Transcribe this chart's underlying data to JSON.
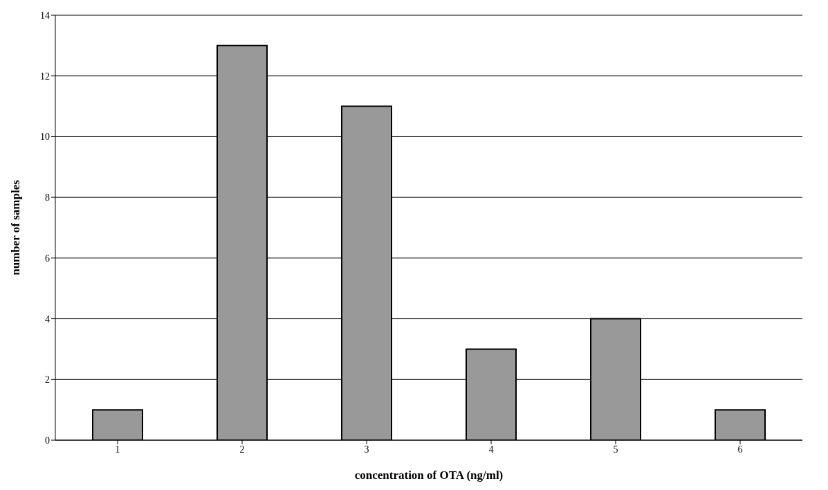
{
  "chart_data": {
    "type": "bar",
    "xlabel": "concentration of OTA (ng/ml)",
    "ylabel": "number of samples",
    "categories": [
      "1",
      "2",
      "3",
      "4",
      "5",
      "6"
    ],
    "values": [
      1,
      13,
      11,
      3,
      4,
      1
    ],
    "color": "#999999",
    "ylim": [
      0,
      14
    ],
    "yticks": [
      0,
      2,
      4,
      6,
      8,
      10,
      12,
      14
    ],
    "grid": "y"
  }
}
